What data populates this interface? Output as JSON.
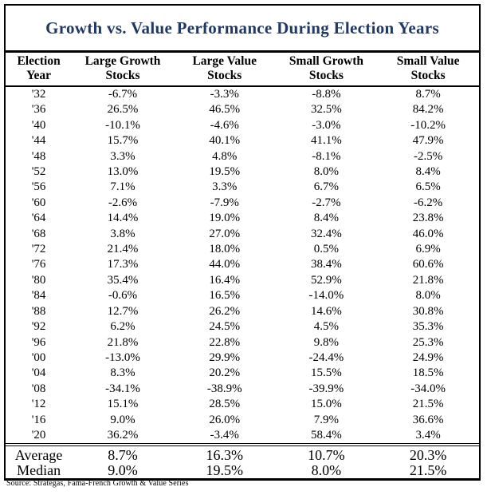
{
  "title": "Growth vs. Value Performance During Election Years",
  "source": "Source: Strategas, Fama-French Growth & Value Series",
  "colors": {
    "title_text": "#1f3864",
    "border": "#000000",
    "body_text": "#000000",
    "background": "#ffffff"
  },
  "table": {
    "columns": [
      {
        "line1": "Election",
        "line2": "Year"
      },
      {
        "line1": "Large Growth",
        "line2": "Stocks"
      },
      {
        "line1": "Large Value",
        "line2": "Stocks"
      },
      {
        "line1": "Small Growth",
        "line2": "Stocks"
      },
      {
        "line1": "Small Value",
        "line2": "Stocks"
      }
    ],
    "rows": [
      {
        "year": "'32",
        "values": [
          "-6.7%",
          "-3.3%",
          "-8.8%",
          "8.7%"
        ]
      },
      {
        "year": "'36",
        "values": [
          "26.5%",
          "46.5%",
          "32.5%",
          "84.2%"
        ]
      },
      {
        "year": "'40",
        "values": [
          "-10.1%",
          "-4.6%",
          "-3.0%",
          "-10.2%"
        ]
      },
      {
        "year": "'44",
        "values": [
          "15.7%",
          "40.1%",
          "41.1%",
          "47.9%"
        ]
      },
      {
        "year": "'48",
        "values": [
          "3.3%",
          "4.8%",
          "-8.1%",
          "-2.5%"
        ]
      },
      {
        "year": "'52",
        "values": [
          "13.0%",
          "19.5%",
          "8.0%",
          "8.4%"
        ]
      },
      {
        "year": "'56",
        "values": [
          "7.1%",
          "3.3%",
          "6.7%",
          "6.5%"
        ]
      },
      {
        "year": "'60",
        "values": [
          "-2.6%",
          "-7.9%",
          "-2.7%",
          "-6.2%"
        ]
      },
      {
        "year": "'64",
        "values": [
          "14.4%",
          "19.0%",
          "8.4%",
          "23.8%"
        ]
      },
      {
        "year": "'68",
        "values": [
          "3.8%",
          "27.0%",
          "32.4%",
          "46.0%"
        ]
      },
      {
        "year": "'72",
        "values": [
          "21.4%",
          "18.0%",
          "0.5%",
          "6.9%"
        ]
      },
      {
        "year": "'76",
        "values": [
          "17.3%",
          "44.0%",
          "38.4%",
          "60.6%"
        ]
      },
      {
        "year": "'80",
        "values": [
          "35.4%",
          "16.4%",
          "52.9%",
          "21.8%"
        ]
      },
      {
        "year": "'84",
        "values": [
          "-0.6%",
          "16.5%",
          "-14.0%",
          "8.0%"
        ]
      },
      {
        "year": "'88",
        "values": [
          "12.7%",
          "26.2%",
          "14.6%",
          "30.8%"
        ]
      },
      {
        "year": "'92",
        "values": [
          "6.2%",
          "24.5%",
          "4.5%",
          "35.3%"
        ]
      },
      {
        "year": "'96",
        "values": [
          "21.8%",
          "22.8%",
          "9.8%",
          "25.3%"
        ]
      },
      {
        "year": "'00",
        "values": [
          "-13.0%",
          "29.9%",
          "-24.4%",
          "24.9%"
        ]
      },
      {
        "year": "'04",
        "values": [
          "8.3%",
          "20.2%",
          "15.5%",
          "18.5%"
        ]
      },
      {
        "year": "'08",
        "values": [
          "-34.1%",
          "-38.9%",
          "-39.9%",
          "-34.0%"
        ]
      },
      {
        "year": "'12",
        "values": [
          "15.1%",
          "28.5%",
          "15.0%",
          "21.5%"
        ]
      },
      {
        "year": "'16",
        "values": [
          "9.0%",
          "26.0%",
          "7.9%",
          "36.6%"
        ]
      },
      {
        "year": "'20",
        "values": [
          "36.2%",
          "-3.4%",
          "58.4%",
          "3.4%"
        ]
      }
    ],
    "summary": [
      {
        "label": "Average",
        "values": [
          "8.7%",
          "16.3%",
          "10.7%",
          "20.3%"
        ]
      },
      {
        "label": "Median",
        "values": [
          "9.0%",
          "19.5%",
          "8.0%",
          "21.5%"
        ]
      }
    ]
  },
  "chart_data": {
    "type": "table",
    "title": "Growth vs. Value Performance During Election Years",
    "unit": "%",
    "categories": [
      "'32",
      "'36",
      "'40",
      "'44",
      "'48",
      "'52",
      "'56",
      "'60",
      "'64",
      "'68",
      "'72",
      "'76",
      "'80",
      "'84",
      "'88",
      "'92",
      "'96",
      "'00",
      "'04",
      "'08",
      "'12",
      "'16",
      "'20"
    ],
    "series": [
      {
        "name": "Large Growth Stocks",
        "values": [
          -6.7,
          26.5,
          -10.1,
          15.7,
          3.3,
          13.0,
          7.1,
          -2.6,
          14.4,
          3.8,
          21.4,
          17.3,
          35.4,
          -0.6,
          12.7,
          6.2,
          21.8,
          -13.0,
          8.3,
          -34.1,
          15.1,
          9.0,
          36.2
        ]
      },
      {
        "name": "Large Value Stocks",
        "values": [
          -3.3,
          46.5,
          -4.6,
          40.1,
          4.8,
          19.5,
          3.3,
          -7.9,
          19.0,
          27.0,
          18.0,
          44.0,
          16.4,
          16.5,
          26.2,
          24.5,
          22.8,
          29.9,
          20.2,
          -38.9,
          28.5,
          26.0,
          -3.4
        ]
      },
      {
        "name": "Small Growth Stocks",
        "values": [
          -8.8,
          32.5,
          -3.0,
          41.1,
          -8.1,
          8.0,
          6.7,
          -2.7,
          8.4,
          32.4,
          0.5,
          38.4,
          52.9,
          -14.0,
          14.6,
          4.5,
          9.8,
          -24.4,
          15.5,
          -39.9,
          15.0,
          7.9,
          58.4
        ]
      },
      {
        "name": "Small Value Stocks",
        "values": [
          8.7,
          84.2,
          -10.2,
          47.9,
          -2.5,
          8.4,
          6.5,
          -6.2,
          23.8,
          46.0,
          6.9,
          60.6,
          21.8,
          8.0,
          30.8,
          35.3,
          25.3,
          24.9,
          18.5,
          -34.0,
          21.5,
          36.6,
          3.4
        ]
      }
    ],
    "summary": {
      "average": {
        "Large Growth Stocks": 8.7,
        "Large Value Stocks": 16.3,
        "Small Growth Stocks": 10.7,
        "Small Value Stocks": 20.3
      },
      "median": {
        "Large Growth Stocks": 9.0,
        "Large Value Stocks": 19.5,
        "Small Growth Stocks": 8.0,
        "Small Value Stocks": 21.5
      }
    },
    "source": "Strategas, Fama-French Growth & Value Series"
  }
}
